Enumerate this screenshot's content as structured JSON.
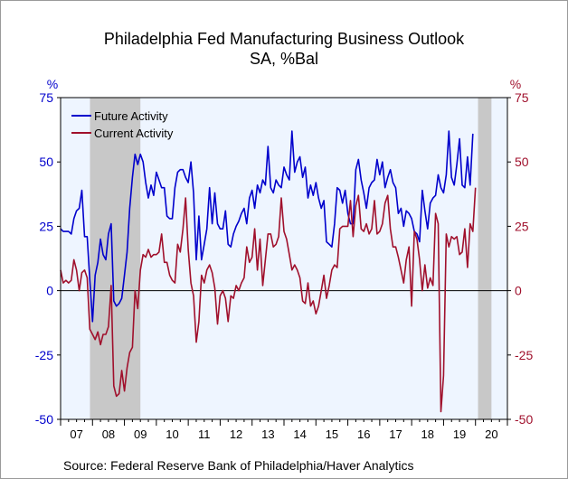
{
  "chart_data": {
    "type": "line",
    "title": "Philadelphia Fed Manufacturing Business Outlook",
    "subtitle": "SA, %Bal",
    "y_left_label": "%",
    "y_right_label": "%",
    "ylim": [
      -50,
      75
    ],
    "yticks": [
      75,
      50,
      25,
      0,
      -25,
      -50
    ],
    "xlim": [
      2007.0,
      2021.0
    ],
    "x_tick_labels": [
      "07",
      "08",
      "09",
      "10",
      "11",
      "12",
      "13",
      "14",
      "15",
      "16",
      "17",
      "18",
      "19",
      "20"
    ],
    "recessions": [
      [
        2007.92,
        2009.5
      ],
      [
        2020.08,
        2020.5
      ]
    ],
    "grid": false,
    "zero_line": true,
    "legend_position": "top-left",
    "colors": {
      "background": "#eef5ff",
      "recession": "#c8c8c8",
      "future": "#0000cc",
      "current": "#a0102c",
      "left_axis": "#0000cc",
      "right_axis": "#a0102c"
    },
    "series": [
      {
        "name": "Future Activity",
        "color": "#0000cc",
        "start": 2007.0,
        "step": 0.08333,
        "values": [
          24,
          23,
          23,
          23,
          22,
          28,
          31,
          32,
          39,
          21,
          21,
          4,
          -12,
          6,
          11,
          20,
          14,
          12,
          22,
          26,
          -4,
          -6,
          -5,
          -3,
          6,
          15,
          32,
          44,
          53,
          49,
          53,
          50,
          42,
          36,
          41,
          37,
          46,
          43,
          40,
          40,
          29,
          28,
          28,
          40,
          46,
          47,
          47,
          44,
          42,
          50,
          38,
          12,
          29,
          12,
          18,
          24,
          40,
          26,
          38,
          26,
          24,
          24,
          31,
          18,
          17,
          22,
          25,
          27,
          30,
          32,
          26,
          36,
          39,
          32,
          41,
          38,
          43,
          41,
          56,
          40,
          38,
          43,
          41,
          40,
          48,
          45,
          43,
          62,
          46,
          50,
          52,
          44,
          48,
          36,
          41,
          37,
          42,
          36,
          32,
          35,
          19,
          18,
          17,
          26,
          40,
          39,
          34,
          39,
          30,
          26,
          26,
          47,
          51,
          43,
          38,
          32,
          40,
          42,
          43,
          51,
          45,
          50,
          40,
          44,
          47,
          42,
          40,
          30,
          32,
          25,
          31,
          30,
          28,
          23,
          22,
          19,
          39,
          31,
          24,
          34,
          36,
          37,
          45,
          40,
          38,
          45,
          62,
          44,
          41,
          49,
          59,
          41,
          40,
          52,
          41,
          61
        ]
      },
      {
        "name": "Current Activity",
        "color": "#a0102c",
        "start": 2007.0,
        "step": 0.08333,
        "values": [
          8,
          3,
          4,
          3,
          4,
          12,
          8,
          0,
          7,
          8,
          5,
          -15,
          -17,
          -19,
          -16,
          -21,
          -17,
          -17,
          -14,
          2,
          -37,
          -41,
          -40,
          -31,
          -39,
          -30,
          -24,
          -22,
          0,
          -7,
          8,
          14,
          13,
          16,
          13,
          14,
          14,
          15,
          22,
          11,
          11,
          6,
          4,
          3,
          18,
          15,
          24,
          36,
          16,
          3,
          -2,
          -20,
          -12,
          6,
          3,
          8,
          10,
          7,
          1,
          -13,
          -2,
          0,
          -3,
          -12,
          -2,
          -3,
          2,
          0,
          3,
          5,
          17,
          11,
          13,
          24,
          8,
          20,
          2,
          12,
          22,
          22,
          17,
          18,
          21,
          36,
          23,
          20,
          14,
          8,
          10,
          8,
          5,
          -4,
          -5,
          3,
          -6,
          -4,
          -9,
          -6,
          0,
          6,
          -3,
          2,
          8,
          10,
          9,
          24,
          25,
          25,
          25,
          35,
          21,
          33,
          37,
          24,
          23,
          26,
          22,
          24,
          35,
          22,
          23,
          26,
          34,
          37,
          24,
          17,
          17,
          13,
          8,
          3,
          12,
          17,
          -6,
          23,
          20,
          12,
          0,
          10,
          1,
          5,
          2,
          30,
          26,
          -47,
          -33,
          22,
          17,
          21,
          20,
          21,
          14,
          15,
          24,
          9,
          26,
          23,
          40
        ]
      }
    ],
    "source": "Source:   Federal Reserve Bank of Philadelphia/Haver Analytics"
  }
}
